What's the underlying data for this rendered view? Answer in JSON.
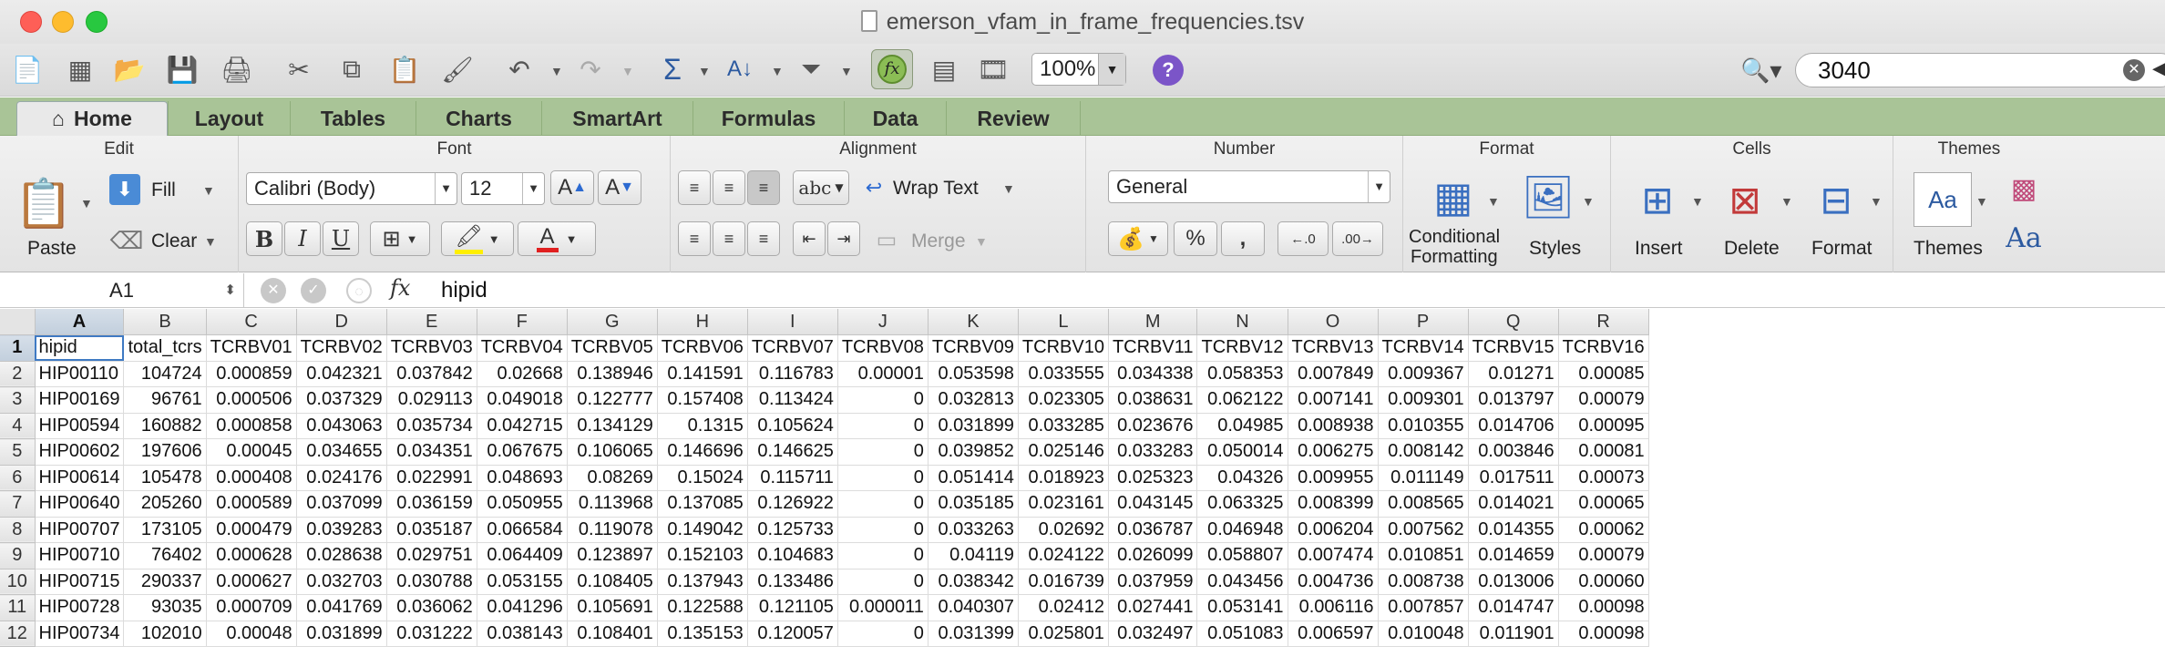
{
  "window": {
    "title": "emerson_vfam_in_frame_frequencies.tsv"
  },
  "toolbar": {
    "zoom": "100%",
    "search_value": "3040"
  },
  "tabs": [
    "Home",
    "Layout",
    "Tables",
    "Charts",
    "SmartArt",
    "Formulas",
    "Data",
    "Review"
  ],
  "ribbon": {
    "edit": {
      "group": "Edit",
      "paste": "Paste",
      "fill": "Fill",
      "clear": "Clear"
    },
    "font": {
      "group": "Font",
      "name": "Calibri (Body)",
      "size": "12",
      "bold": "B",
      "italic": "I",
      "underline": "U"
    },
    "alignment": {
      "group": "Alignment",
      "abc": "abc",
      "wrap": "Wrap Text",
      "merge": "Merge"
    },
    "number": {
      "group": "Number",
      "format": "General",
      "percent": "%",
      "comma": ","
    },
    "format": {
      "group": "Format",
      "conditional": "Conditional",
      "formatting": "Formatting",
      "styles": "Styles"
    },
    "cells": {
      "group": "Cells",
      "insert": "Insert",
      "delete": "Delete",
      "format": "Format"
    },
    "themes": {
      "group": "Themes",
      "themes": "Themes"
    }
  },
  "formula_bar": {
    "cell_ref": "A1",
    "fx": "fx",
    "value": "hipid"
  },
  "sheet": {
    "active_cell": "A1",
    "columns": [
      "A",
      "B",
      "C",
      "D",
      "E",
      "F",
      "G",
      "H",
      "I",
      "J",
      "K",
      "L",
      "M",
      "N",
      "O",
      "P",
      "Q",
      "R"
    ],
    "rows": [
      [
        "hipid",
        "total_tcrs",
        "TCRBV01",
        "TCRBV02",
        "TCRBV03",
        "TCRBV04",
        "TCRBV05",
        "TCRBV06",
        "TCRBV07",
        "TCRBV08",
        "TCRBV09",
        "TCRBV10",
        "TCRBV11",
        "TCRBV12",
        "TCRBV13",
        "TCRBV14",
        "TCRBV15",
        "TCRBV16"
      ],
      [
        "HIP00110",
        "104724",
        "0.000859",
        "0.042321",
        "0.037842",
        "0.02668",
        "0.138946",
        "0.141591",
        "0.116783",
        "0.00001",
        "0.053598",
        "0.033555",
        "0.034338",
        "0.058353",
        "0.007849",
        "0.009367",
        "0.01271",
        "0.00085"
      ],
      [
        "HIP00169",
        "96761",
        "0.000506",
        "0.037329",
        "0.029113",
        "0.049018",
        "0.122777",
        "0.157408",
        "0.113424",
        "0",
        "0.032813",
        "0.023305",
        "0.038631",
        "0.062122",
        "0.007141",
        "0.009301",
        "0.013797",
        "0.00079"
      ],
      [
        "HIP00594",
        "160882",
        "0.000858",
        "0.043063",
        "0.035734",
        "0.042715",
        "0.134129",
        "0.1315",
        "0.105624",
        "0",
        "0.031899",
        "0.033285",
        "0.023676",
        "0.04985",
        "0.008938",
        "0.010355",
        "0.014706",
        "0.00095"
      ],
      [
        "HIP00602",
        "197606",
        "0.00045",
        "0.034655",
        "0.034351",
        "0.067675",
        "0.106065",
        "0.146696",
        "0.146625",
        "0",
        "0.039852",
        "0.025146",
        "0.033283",
        "0.050014",
        "0.006275",
        "0.008142",
        "0.003846",
        "0.00081"
      ],
      [
        "HIP00614",
        "105478",
        "0.000408",
        "0.024176",
        "0.022991",
        "0.048693",
        "0.08269",
        "0.15024",
        "0.115711",
        "0",
        "0.051414",
        "0.018923",
        "0.025323",
        "0.04326",
        "0.009955",
        "0.011149",
        "0.017511",
        "0.00073"
      ],
      [
        "HIP00640",
        "205260",
        "0.000589",
        "0.037099",
        "0.036159",
        "0.050955",
        "0.113968",
        "0.137085",
        "0.126922",
        "0",
        "0.035185",
        "0.023161",
        "0.043145",
        "0.063325",
        "0.008399",
        "0.008565",
        "0.014021",
        "0.00065"
      ],
      [
        "HIP00707",
        "173105",
        "0.000479",
        "0.039283",
        "0.035187",
        "0.066584",
        "0.119078",
        "0.149042",
        "0.125733",
        "0",
        "0.033263",
        "0.02692",
        "0.036787",
        "0.046948",
        "0.006204",
        "0.007562",
        "0.014355",
        "0.00062"
      ],
      [
        "HIP00710",
        "76402",
        "0.000628",
        "0.028638",
        "0.029751",
        "0.064409",
        "0.123897",
        "0.152103",
        "0.104683",
        "0",
        "0.04119",
        "0.024122",
        "0.026099",
        "0.058807",
        "0.007474",
        "0.010851",
        "0.014659",
        "0.00079"
      ],
      [
        "HIP00715",
        "290337",
        "0.000627",
        "0.032703",
        "0.030788",
        "0.053155",
        "0.108405",
        "0.137943",
        "0.133486",
        "0",
        "0.038342",
        "0.016739",
        "0.037959",
        "0.043456",
        "0.004736",
        "0.008738",
        "0.013006",
        "0.00060"
      ],
      [
        "HIP00728",
        "93035",
        "0.000709",
        "0.041769",
        "0.036062",
        "0.041296",
        "0.105691",
        "0.122588",
        "0.121105",
        "0.000011",
        "0.040307",
        "0.02412",
        "0.027441",
        "0.053141",
        "0.006116",
        "0.007857",
        "0.014747",
        "0.00098"
      ],
      [
        "HIP00734",
        "102010",
        "0.00048",
        "0.031899",
        "0.031222",
        "0.038143",
        "0.108401",
        "0.135153",
        "0.120057",
        "0",
        "0.031399",
        "0.025801",
        "0.032497",
        "0.051083",
        "0.006597",
        "0.010048",
        "0.011901",
        "0.00098"
      ]
    ]
  }
}
